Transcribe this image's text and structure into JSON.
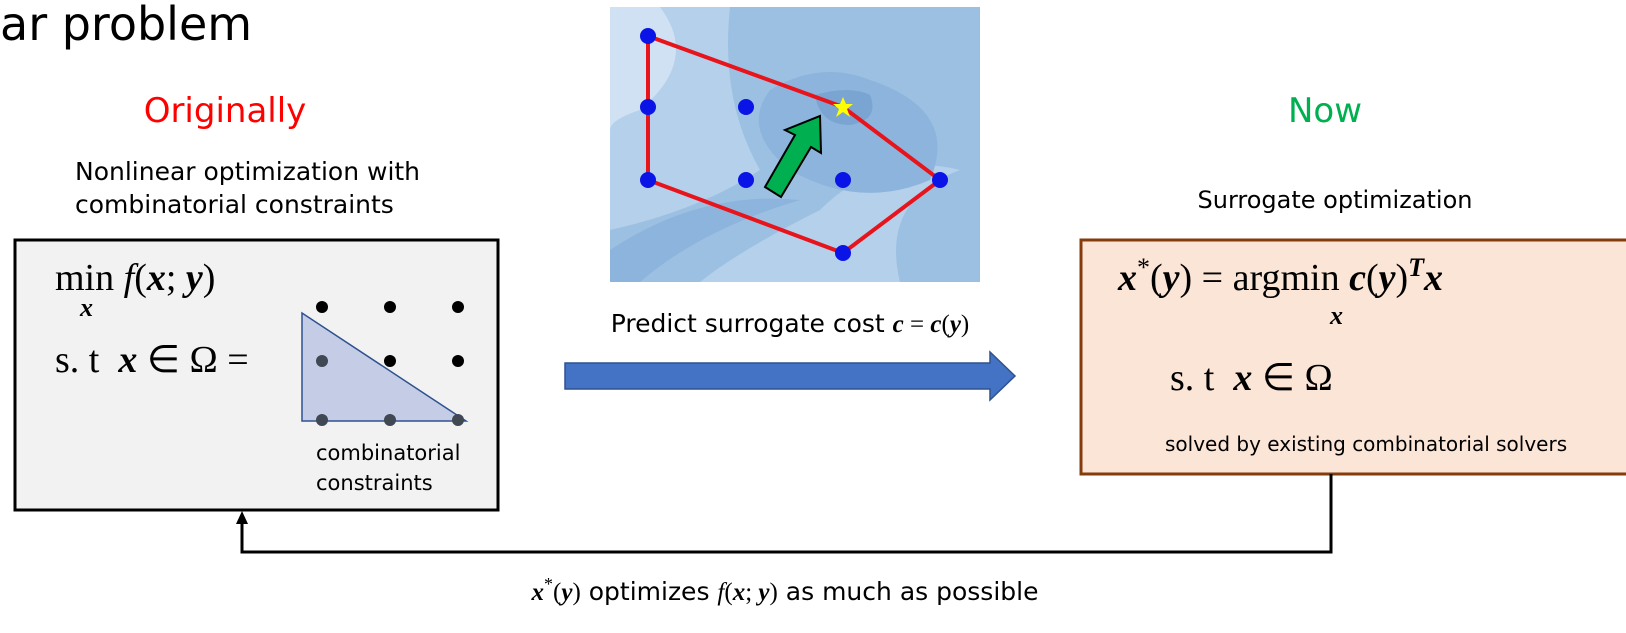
{
  "header": {
    "title": "ar problem"
  },
  "left": {
    "heading": "Originally",
    "description": [
      "Nonlinear optimization with",
      "combinatorial constraints"
    ],
    "objective": [
      "min ",
      "f",
      "(",
      "x",
      "; ",
      "y",
      ")"
    ],
    "objective_sub": "x",
    "constraint": [
      "s. t  ",
      "x",
      " ∈ Ω ="
    ],
    "constraint_label": [
      "combinatorial",
      "constraints"
    ]
  },
  "center": {
    "caption": [
      "Predict surrogate cost ",
      "c",
      " = ",
      "c",
      "(",
      "y",
      ")"
    ]
  },
  "right": {
    "heading": "Now",
    "description": "Surrogate optimization",
    "objective": [
      "x",
      "*",
      "(",
      "y",
      ") = ",
      "argmin ",
      "c",
      "(",
      "y",
      ")",
      "T",
      "x"
    ],
    "objective_sub": "x",
    "constraint": [
      "s. t  ",
      "x",
      " ∈ Ω"
    ],
    "note": "solved by existing combinatorial solvers"
  },
  "feedback": {
    "caption": [
      "x",
      "*",
      "(",
      "y",
      ")",
      " optimizes ",
      "f",
      "(",
      "x",
      "; ",
      "y",
      ")",
      " as much as possible"
    ]
  }
}
